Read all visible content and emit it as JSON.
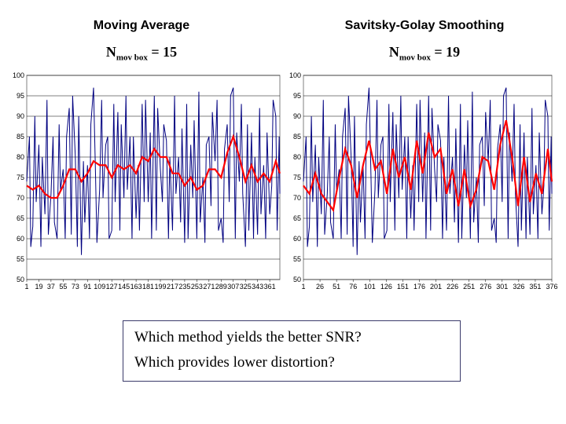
{
  "titles": {
    "left": "Moving Average",
    "right": "Savitsky-Golay Smoothing"
  },
  "subtitles": {
    "left_prefix": "N",
    "left_sub": "mov box",
    "left_rest": " = 15",
    "right_prefix": "N",
    "right_sub": "mov box",
    "right_rest": " = 19"
  },
  "questions": {
    "q1": "Which method yields the better SNR?",
    "q2": "Which provides lower distortion?"
  },
  "left_chart": {
    "type": "line",
    "background_color": "#ffffff",
    "grid_color": "#000000",
    "axis_fontsize": 9,
    "raw_color": "#000080",
    "smooth_color": "#ff0000",
    "raw_line_width": 1.0,
    "smooth_line_width": 2.2,
    "ylim": [
      50,
      100
    ],
    "yticks": [
      50,
      55,
      60,
      65,
      70,
      75,
      80,
      85,
      90,
      95,
      100
    ],
    "xlim": [
      1,
      376
    ],
    "xticks": [
      1,
      19,
      37,
      55,
      73,
      91,
      109,
      127,
      145,
      163,
      181,
      199,
      217,
      235,
      253,
      271,
      289,
      307,
      325,
      343,
      361
    ],
    "x": [
      1,
      10,
      19,
      28,
      37,
      46,
      55,
      64,
      73,
      82,
      91,
      100,
      109,
      118,
      127,
      136,
      145,
      154,
      163,
      172,
      181,
      190,
      199,
      208,
      217,
      226,
      235,
      244,
      253,
      262,
      271,
      280,
      289,
      298,
      307,
      316,
      325,
      334,
      343,
      352,
      361,
      370,
      376
    ],
    "raw_values": [
      74,
      63,
      83,
      66,
      71,
      60,
      77,
      92,
      80,
      56,
      78,
      97,
      72,
      83,
      62,
      91,
      70,
      85,
      65,
      93,
      69,
      95,
      77,
      84,
      62,
      80,
      59,
      83,
      60,
      75,
      85,
      79,
      65,
      88,
      97,
      74,
      58,
      86,
      61,
      78,
      66,
      90,
      71
    ],
    "smooth_values": [
      73,
      72,
      73,
      71,
      70,
      70,
      73,
      77,
      77,
      74,
      76,
      79,
      78,
      78,
      75,
      78,
      77,
      78,
      76,
      80,
      79,
      82,
      80,
      80,
      76,
      76,
      73,
      75,
      72,
      73,
      77,
      77,
      75,
      81,
      85,
      80,
      74,
      78,
      74,
      76,
      74,
      79,
      76
    ],
    "raw_minor": [
      [
        5,
        85
      ],
      [
        7,
        58
      ],
      [
        13,
        90
      ],
      [
        15,
        69
      ],
      [
        22,
        58
      ],
      [
        24,
        80
      ],
      [
        31,
        94
      ],
      [
        33,
        61
      ],
      [
        40,
        85
      ],
      [
        42,
        64
      ],
      [
        49,
        88
      ],
      [
        51,
        72
      ],
      [
        58,
        60
      ],
      [
        60,
        85
      ],
      [
        67,
        61
      ],
      [
        69,
        95
      ],
      [
        76,
        58
      ],
      [
        78,
        90
      ],
      [
        85,
        79
      ],
      [
        87,
        64
      ],
      [
        94,
        60
      ],
      [
        96,
        88
      ],
      [
        103,
        75
      ],
      [
        105,
        59
      ],
      [
        112,
        94
      ],
      [
        114,
        70
      ],
      [
        121,
        85
      ],
      [
        123,
        60
      ],
      [
        130,
        93
      ],
      [
        132,
        69
      ],
      [
        139,
        62
      ],
      [
        141,
        88
      ],
      [
        148,
        95
      ],
      [
        150,
        72
      ],
      [
        157,
        60
      ],
      [
        159,
        85
      ],
      [
        166,
        78
      ],
      [
        168,
        62
      ],
      [
        175,
        69
      ],
      [
        177,
        94
      ],
      [
        184,
        86
      ],
      [
        186,
        60
      ],
      [
        193,
        62
      ],
      [
        195,
        92
      ],
      [
        202,
        69
      ],
      [
        204,
        88
      ],
      [
        211,
        60
      ],
      [
        213,
        80
      ],
      [
        220,
        95
      ],
      [
        222,
        71
      ],
      [
        229,
        64
      ],
      [
        231,
        87
      ],
      [
        238,
        93
      ],
      [
        240,
        60
      ],
      [
        247,
        70
      ],
      [
        249,
        89
      ],
      [
        256,
        96
      ],
      [
        258,
        64
      ],
      [
        265,
        59
      ],
      [
        267,
        83
      ],
      [
        274,
        68
      ],
      [
        276,
        91
      ],
      [
        283,
        94
      ],
      [
        285,
        62
      ],
      [
        292,
        59
      ],
      [
        294,
        82
      ],
      [
        301,
        69
      ],
      [
        303,
        95
      ],
      [
        310,
        60
      ],
      [
        312,
        86
      ],
      [
        319,
        93
      ],
      [
        321,
        71
      ],
      [
        328,
        88
      ],
      [
        330,
        62
      ],
      [
        337,
        60
      ],
      [
        339,
        80
      ],
      [
        346,
        92
      ],
      [
        348,
        66
      ],
      [
        355,
        60
      ],
      [
        357,
        86
      ],
      [
        364,
        73
      ],
      [
        366,
        94
      ],
      [
        372,
        62
      ],
      [
        375,
        85
      ]
    ]
  },
  "right_chart": {
    "type": "line",
    "background_color": "#ffffff",
    "grid_color": "#000000",
    "axis_fontsize": 9,
    "raw_color": "#000080",
    "smooth_color": "#ff0000",
    "raw_line_width": 1.0,
    "smooth_line_width": 2.2,
    "ylim": [
      50,
      100
    ],
    "yticks": [
      50,
      55,
      60,
      65,
      70,
      75,
      80,
      85,
      90,
      95,
      100
    ],
    "xlim": [
      1,
      376
    ],
    "xticks": [
      1,
      26,
      51,
      76,
      101,
      126,
      151,
      176,
      201,
      226,
      251,
      276,
      301,
      326,
      351,
      376
    ],
    "x": [
      1,
      10,
      19,
      28,
      37,
      46,
      55,
      64,
      73,
      82,
      91,
      100,
      109,
      118,
      127,
      136,
      145,
      154,
      163,
      172,
      181,
      190,
      199,
      208,
      217,
      226,
      235,
      244,
      253,
      262,
      271,
      280,
      289,
      298,
      307,
      316,
      325,
      334,
      343,
      352,
      361,
      370,
      376
    ],
    "raw_values": [
      74,
      63,
      83,
      66,
      71,
      60,
      77,
      92,
      80,
      56,
      78,
      97,
      72,
      83,
      62,
      91,
      70,
      85,
      65,
      93,
      69,
      95,
      77,
      84,
      62,
      80,
      59,
      83,
      60,
      75,
      85,
      79,
      65,
      88,
      97,
      74,
      58,
      86,
      61,
      78,
      66,
      90,
      71
    ],
    "smooth_values": [
      73,
      71,
      76,
      71,
      69,
      67,
      75,
      82,
      78,
      70,
      78,
      84,
      77,
      79,
      71,
      82,
      75,
      80,
      72,
      84,
      76,
      86,
      80,
      82,
      71,
      77,
      68,
      77,
      68,
      72,
      80,
      79,
      72,
      83,
      89,
      80,
      68,
      80,
      69,
      76,
      71,
      82,
      74
    ],
    "raw_minor": [
      [
        5,
        85
      ],
      [
        7,
        58
      ],
      [
        13,
        90
      ],
      [
        15,
        69
      ],
      [
        22,
        58
      ],
      [
        24,
        80
      ],
      [
        31,
        94
      ],
      [
        33,
        61
      ],
      [
        40,
        85
      ],
      [
        42,
        64
      ],
      [
        49,
        88
      ],
      [
        51,
        72
      ],
      [
        58,
        60
      ],
      [
        60,
        85
      ],
      [
        67,
        61
      ],
      [
        69,
        95
      ],
      [
        76,
        58
      ],
      [
        78,
        90
      ],
      [
        85,
        79
      ],
      [
        87,
        64
      ],
      [
        94,
        60
      ],
      [
        96,
        88
      ],
      [
        103,
        75
      ],
      [
        105,
        59
      ],
      [
        112,
        94
      ],
      [
        114,
        70
      ],
      [
        121,
        85
      ],
      [
        123,
        60
      ],
      [
        130,
        93
      ],
      [
        132,
        69
      ],
      [
        139,
        62
      ],
      [
        141,
        88
      ],
      [
        148,
        95
      ],
      [
        150,
        72
      ],
      [
        157,
        60
      ],
      [
        159,
        85
      ],
      [
        166,
        78
      ],
      [
        168,
        62
      ],
      [
        175,
        69
      ],
      [
        177,
        94
      ],
      [
        184,
        86
      ],
      [
        186,
        60
      ],
      [
        193,
        62
      ],
      [
        195,
        92
      ],
      [
        202,
        69
      ],
      [
        204,
        88
      ],
      [
        211,
        60
      ],
      [
        213,
        80
      ],
      [
        220,
        95
      ],
      [
        222,
        71
      ],
      [
        229,
        64
      ],
      [
        231,
        87
      ],
      [
        238,
        93
      ],
      [
        240,
        60
      ],
      [
        247,
        70
      ],
      [
        249,
        89
      ],
      [
        256,
        96
      ],
      [
        258,
        64
      ],
      [
        265,
        59
      ],
      [
        267,
        83
      ],
      [
        274,
        68
      ],
      [
        276,
        91
      ],
      [
        283,
        94
      ],
      [
        285,
        62
      ],
      [
        292,
        59
      ],
      [
        294,
        82
      ],
      [
        301,
        69
      ],
      [
        303,
        95
      ],
      [
        310,
        60
      ],
      [
        312,
        86
      ],
      [
        319,
        93
      ],
      [
        321,
        71
      ],
      [
        328,
        88
      ],
      [
        330,
        62
      ],
      [
        337,
        60
      ],
      [
        339,
        80
      ],
      [
        346,
        92
      ],
      [
        348,
        66
      ],
      [
        355,
        60
      ],
      [
        357,
        86
      ],
      [
        364,
        73
      ],
      [
        366,
        94
      ],
      [
        372,
        62
      ],
      [
        375,
        85
      ]
    ]
  }
}
